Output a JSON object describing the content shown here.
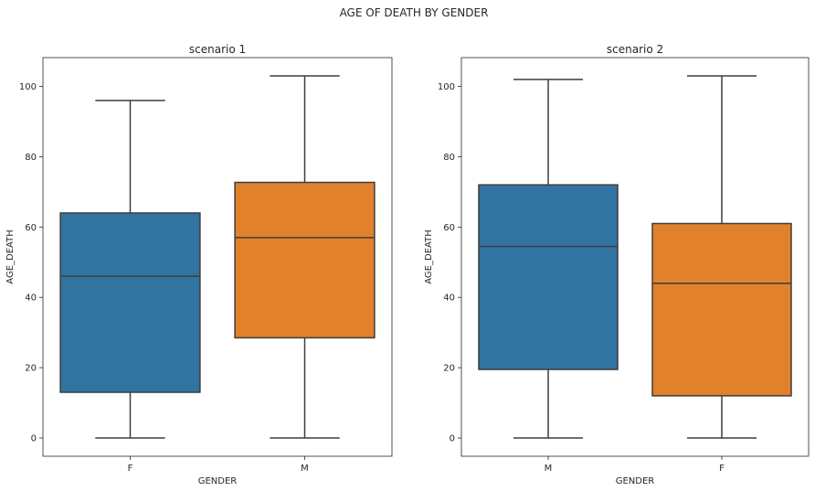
{
  "suptitle": "AGE OF DEATH BY GENDER",
  "chart_data": [
    {
      "type": "box",
      "title": "scenario 1",
      "xlabel": "GENDER",
      "ylabel": "AGE_DEATH",
      "categories": [
        "F",
        "M"
      ],
      "colors": [
        "#3274a1",
        "#e1812c"
      ],
      "boxes": [
        {
          "category": "F",
          "whisker_low": 0,
          "q1": 13,
          "median": 46,
          "q3": 64,
          "whisker_high": 96
        },
        {
          "category": "M",
          "whisker_low": 0,
          "q1": 28.5,
          "median": 57,
          "q3": 72.7,
          "whisker_high": 103
        }
      ],
      "yticks": [
        0,
        20,
        40,
        60,
        80,
        100
      ],
      "ylim": [
        -5.2,
        108.2
      ],
      "grid": false
    },
    {
      "type": "box",
      "title": "scenario 2",
      "xlabel": "GENDER",
      "ylabel": "AGE_DEATH",
      "categories": [
        "M",
        "F"
      ],
      "colors": [
        "#3274a1",
        "#e1812c"
      ],
      "boxes": [
        {
          "category": "M",
          "whisker_low": 0,
          "q1": 19.5,
          "median": 54.5,
          "q3": 72,
          "whisker_high": 102
        },
        {
          "category": "F",
          "whisker_low": 0,
          "q1": 12,
          "median": 44,
          "q3": 61,
          "whisker_high": 103
        }
      ],
      "yticks": [
        0,
        20,
        40,
        60,
        80,
        100
      ],
      "ylim": [
        -5.2,
        108.2
      ],
      "grid": false
    }
  ]
}
